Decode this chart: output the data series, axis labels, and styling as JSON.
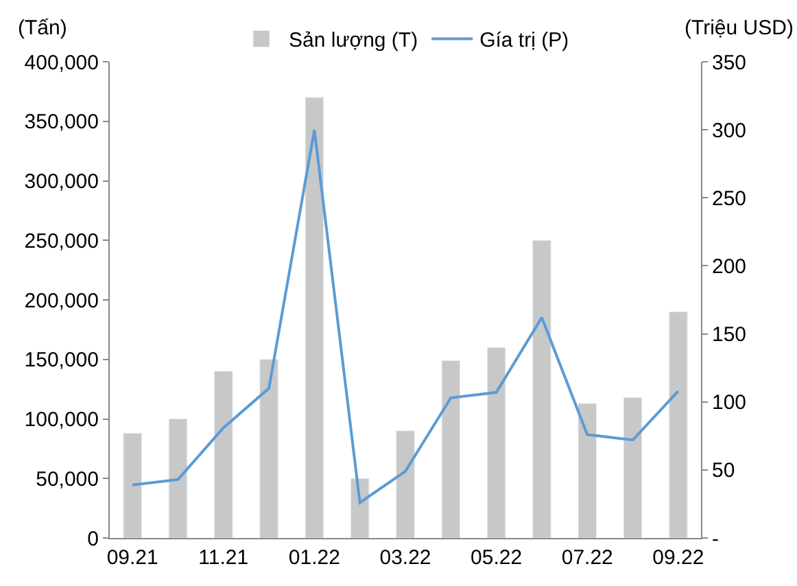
{
  "chart_data": {
    "type": "bar",
    "ylabel": "(Tấn)",
    "y2label": "(Triệu USD)",
    "categories": [
      "09.21",
      null,
      "11.21",
      null,
      "01.22",
      null,
      "03.22",
      null,
      "05.22",
      null,
      "07.22",
      null,
      "09.22"
    ],
    "series": [
      {
        "name": "Sản lượng (T)",
        "axis": "y",
        "color": "#c8c8c8",
        "values": [
          88000,
          100000,
          140000,
          150000,
          370000,
          50000,
          90000,
          149000,
          160000,
          250000,
          113000,
          118000,
          190000
        ]
      },
      {
        "name": "Gía trị (P)",
        "type": "line",
        "axis": "y2",
        "color": "#5b9bd5",
        "values": [
          39,
          43,
          81,
          110,
          300,
          26,
          49,
          103,
          107,
          162,
          76,
          72,
          108
        ]
      }
    ],
    "ylim": [
      0,
      400000
    ],
    "yticks": [
      {
        "value": 0,
        "label": "0"
      },
      {
        "value": 50000,
        "label": "50,000"
      },
      {
        "value": 100000,
        "label": "100,000"
      },
      {
        "value": 150000,
        "label": "150,000"
      },
      {
        "value": 200000,
        "label": "200,000"
      },
      {
        "value": 250000,
        "label": "250,000"
      },
      {
        "value": 300000,
        "label": "300,000"
      },
      {
        "value": 350000,
        "label": "350,000"
      },
      {
        "value": 400000,
        "label": "400,000"
      }
    ],
    "y2lim": [
      0,
      350
    ],
    "y2ticks": [
      {
        "value": 0,
        "label": "-"
      },
      50,
      100,
      150,
      200,
      250,
      300,
      350
    ],
    "legend": "top",
    "marker": "none",
    "line_style": "solid"
  }
}
